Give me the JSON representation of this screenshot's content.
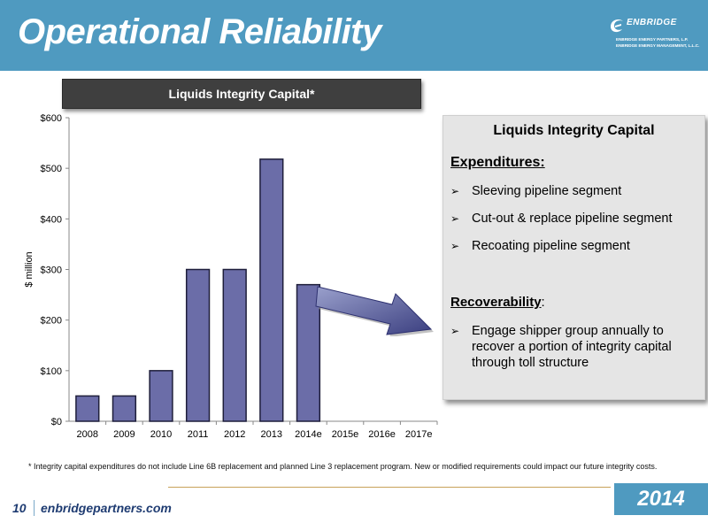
{
  "header": {
    "title": "Operational Reliability"
  },
  "logo": {
    "name": "ENBRIDGE",
    "line1": "ENBRIDGE ENERGY PARTNERS, L.P.",
    "line2": "ENBRIDGE ENERGY MANAGEMENT, L.L.C."
  },
  "chart_data": {
    "type": "bar",
    "title": "Liquids Integrity Capital*",
    "categories": [
      "2008",
      "2009",
      "2010",
      "2011",
      "2012",
      "2013",
      "2014e",
      "2015e",
      "2016e",
      "2017e"
    ],
    "values": [
      50,
      50,
      100,
      300,
      300,
      518,
      270,
      null,
      null,
      null
    ],
    "ylabel": "$ million",
    "ylim": [
      0,
      600
    ],
    "yticks": [
      0,
      100,
      200,
      300,
      400,
      500,
      600
    ],
    "ytick_labels": [
      "$0",
      "$100",
      "$200",
      "$300",
      "$400",
      "$500",
      "$600"
    ],
    "grid": false,
    "legend": "none",
    "bar_color": "#6b6da8"
  },
  "panel": {
    "title": "Liquids Integrity Capital",
    "expenditures_heading": "Expenditures:",
    "expenditures": [
      "Sleeving pipeline segment",
      "Cut-out & replace pipeline segment",
      "Recoating pipeline segment"
    ],
    "recoverability_heading": "Recoverability",
    "recoverability_suffix": ":",
    "recoverability_items": [
      "Engage shipper group annually to recover a portion of integrity capital through toll structure"
    ],
    "bullet_glyph": "➢"
  },
  "footnote": "* Integrity capital expenditures do not include Line 6B replacement and planned Line 3 replacement program.  New or modified requirements could impact our future integrity costs.",
  "footer": {
    "page": "10",
    "site": "enbridgepartners.com",
    "year": "2014"
  },
  "colors": {
    "header": "#4f9ac0",
    "title_bar": "#3f3f3f",
    "panel": "#e5e5e5",
    "footer_text": "#1f3c72"
  }
}
